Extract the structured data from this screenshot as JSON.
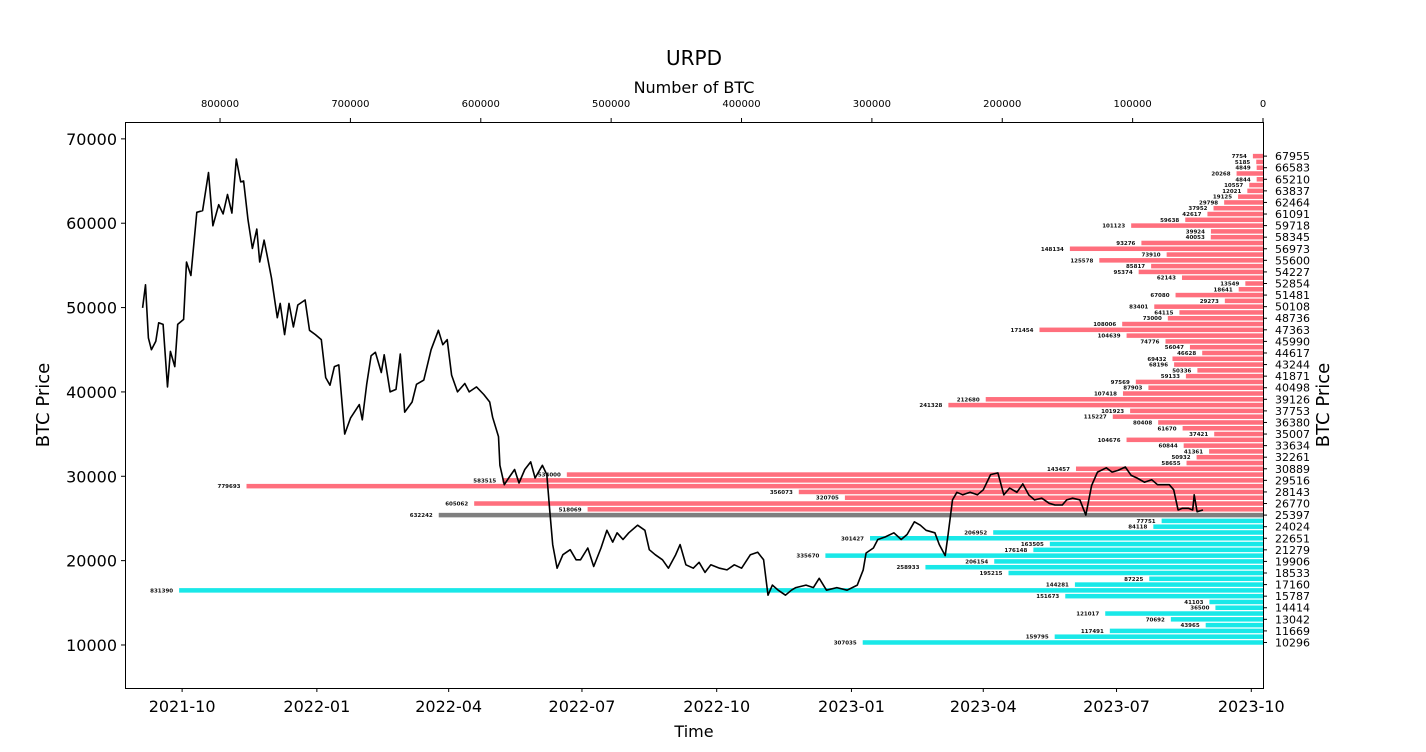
{
  "chart_data": {
    "type": "bar+line",
    "title": "URPD",
    "top_xlabel": "Number of BTC",
    "xlabel": "Time",
    "ylabel_left": "BTC Price",
    "ylabel_right": "BTC Price",
    "ylim": [
      4900,
      72000
    ],
    "top_xlim": [
      872900,
      0
    ],
    "time_origin": "2021-10-01",
    "time_xlim_days": [
      -39,
      738
    ],
    "left_yticks": [
      10000,
      20000,
      30000,
      40000,
      50000,
      60000,
      70000
    ],
    "left_ytick_labels": [
      "10000",
      "20000",
      "30000",
      "40000",
      "50000",
      "60000",
      "70000"
    ],
    "top_xticks": [
      800000,
      700000,
      600000,
      500000,
      400000,
      300000,
      200000,
      100000,
      0
    ],
    "top_xtick_labels": [
      "800000",
      "700000",
      "600000",
      "500000",
      "400000",
      "300000",
      "200000",
      "100000",
      "0"
    ],
    "time_ticks_days": [
      0,
      92,
      182,
      273,
      365,
      457,
      547,
      638,
      730
    ],
    "time_tick_labels": [
      "2021-10",
      "2022-01",
      "2022-04",
      "2022-07",
      "2022-10",
      "2023-01",
      "2023-04",
      "2023-07",
      "2023-10"
    ],
    "right_ytick_labels": [
      "67955",
      "66583",
      "65210",
      "63837",
      "62464",
      "61091",
      "59718",
      "58345",
      "56973",
      "55600",
      "54227",
      "52854",
      "51481",
      "50108",
      "48736",
      "47363",
      "45990",
      "44617",
      "43244",
      "41871",
      "40498",
      "39126",
      "37753",
      "36380",
      "35007",
      "33634",
      "32261",
      "30889",
      "29516",
      "28143",
      "26770",
      "25397",
      "24024",
      "22651",
      "21279",
      "19906",
      "18533",
      "17160",
      "15787",
      "14414",
      "13042",
      "11669",
      "10296"
    ],
    "bar_price_top": 67955,
    "bar_price_bottom": 10296,
    "current_price_bar_index": 62,
    "colors": {
      "above": "#ff6f7d",
      "below": "#19e8e8",
      "current": "#7f7f7f",
      "line": "#000000"
    },
    "bars": [
      7754,
      5185,
      4849,
      20268,
      4844,
      10557,
      12021,
      19125,
      29798,
      37952,
      42617,
      59638,
      101123,
      39924,
      40053,
      93276,
      148134,
      73910,
      125578,
      85817,
      95374,
      62143,
      13549,
      18641,
      67080,
      29273,
      83401,
      64115,
      73000,
      108006,
      171454,
      104639,
      74776,
      56047,
      46628,
      69432,
      68196,
      50336,
      59133,
      97569,
      87903,
      107418,
      212680,
      241328,
      101923,
      115227,
      80408,
      61670,
      37421,
      104676,
      60844,
      41361,
      50932,
      58655,
      143457,
      534000,
      583515,
      779693,
      356073,
      320705,
      605062,
      518069,
      632242,
      77751,
      84118,
      206952,
      301427,
      163505,
      176148,
      335670,
      206154,
      258933,
      195215,
      87225,
      144281,
      831390,
      151673,
      41103,
      36500,
      121017,
      70692,
      43965,
      117491,
      159795,
      307035
    ],
    "price_series": [
      [
        -27,
        49960
      ],
      [
        -25,
        52700
      ],
      [
        -23,
        46400
      ],
      [
        -21,
        45000
      ],
      [
        -18,
        46000
      ],
      [
        -16,
        48200
      ],
      [
        -13,
        48000
      ],
      [
        -10,
        40600
      ],
      [
        -8,
        44800
      ],
      [
        -5,
        43000
      ],
      [
        -3,
        48000
      ],
      [
        1,
        48600
      ],
      [
        3,
        55400
      ],
      [
        6,
        53800
      ],
      [
        10,
        61300
      ],
      [
        14,
        61500
      ],
      [
        18,
        66000
      ],
      [
        21,
        59700
      ],
      [
        25,
        62200
      ],
      [
        28,
        61100
      ],
      [
        31,
        63400
      ],
      [
        34,
        61200
      ],
      [
        37,
        67600
      ],
      [
        40,
        64900
      ],
      [
        42,
        65000
      ],
      [
        45,
        60400
      ],
      [
        48,
        57000
      ],
      [
        51,
        59300
      ],
      [
        53,
        55400
      ],
      [
        56,
        58000
      ],
      [
        58,
        56200
      ],
      [
        61,
        53500
      ],
      [
        65,
        48800
      ],
      [
        67,
        50500
      ],
      [
        70,
        46800
      ],
      [
        73,
        50500
      ],
      [
        76,
        47700
      ],
      [
        79,
        50300
      ],
      [
        84,
        50900
      ],
      [
        87,
        47300
      ],
      [
        91,
        46800
      ],
      [
        95,
        46200
      ],
      [
        98,
        41700
      ],
      [
        101,
        40800
      ],
      [
        104,
        43000
      ],
      [
        107,
        43200
      ],
      [
        111,
        35000
      ],
      [
        115,
        36900
      ],
      [
        121,
        38500
      ],
      [
        123,
        36700
      ],
      [
        126,
        40900
      ],
      [
        129,
        44300
      ],
      [
        132,
        44700
      ],
      [
        136,
        42300
      ],
      [
        138,
        44400
      ],
      [
        142,
        40000
      ],
      [
        146,
        40300
      ],
      [
        149,
        44500
      ],
      [
        152,
        37600
      ],
      [
        157,
        38800
      ],
      [
        160,
        40900
      ],
      [
        165,
        41400
      ],
      [
        170,
        45000
      ],
      [
        175,
        47300
      ],
      [
        178,
        45600
      ],
      [
        181,
        46200
      ],
      [
        184,
        42000
      ],
      [
        188,
        40000
      ],
      [
        193,
        41000
      ],
      [
        196,
        40000
      ],
      [
        201,
        40600
      ],
      [
        206,
        39700
      ],
      [
        210,
        38800
      ],
      [
        212,
        37000
      ],
      [
        216,
        34700
      ],
      [
        217,
        31300
      ],
      [
        220,
        29000
      ],
      [
        223,
        29800
      ],
      [
        227,
        30800
      ],
      [
        230,
        29200
      ],
      [
        234,
        30800
      ],
      [
        238,
        31700
      ],
      [
        241,
        29800
      ],
      [
        246,
        31300
      ],
      [
        249,
        30200
      ],
      [
        251,
        26000
      ],
      [
        253,
        21900
      ],
      [
        256,
        19100
      ],
      [
        260,
        20700
      ],
      [
        265,
        21300
      ],
      [
        269,
        20100
      ],
      [
        272,
        20100
      ],
      [
        277,
        21500
      ],
      [
        281,
        19300
      ],
      [
        286,
        21500
      ],
      [
        290,
        23600
      ],
      [
        294,
        22200
      ],
      [
        297,
        23300
      ],
      [
        301,
        22500
      ],
      [
        305,
        23300
      ],
      [
        311,
        24200
      ],
      [
        316,
        23600
      ],
      [
        319,
        21300
      ],
      [
        323,
        20700
      ],
      [
        328,
        20100
      ],
      [
        332,
        19100
      ],
      [
        337,
        20700
      ],
      [
        340,
        21900
      ],
      [
        344,
        19500
      ],
      [
        349,
        19100
      ],
      [
        353,
        19800
      ],
      [
        357,
        18600
      ],
      [
        361,
        19500
      ],
      [
        367,
        19100
      ],
      [
        372,
        18900
      ],
      [
        377,
        19500
      ],
      [
        382,
        19100
      ],
      [
        388,
        20700
      ],
      [
        393,
        21000
      ],
      [
        397,
        20100
      ],
      [
        400,
        15900
      ],
      [
        403,
        17100
      ],
      [
        407,
        16500
      ],
      [
        412,
        15900
      ],
      [
        416,
        16500
      ],
      [
        419,
        16800
      ],
      [
        426,
        17100
      ],
      [
        431,
        16800
      ],
      [
        435,
        17900
      ],
      [
        440,
        16500
      ],
      [
        447,
        16800
      ],
      [
        454,
        16500
      ],
      [
        461,
        17100
      ],
      [
        465,
        18900
      ],
      [
        467,
        20900
      ],
      [
        472,
        21500
      ],
      [
        475,
        22500
      ],
      [
        480,
        22800
      ],
      [
        486,
        23300
      ],
      [
        491,
        22500
      ],
      [
        495,
        23100
      ],
      [
        500,
        24600
      ],
      [
        504,
        24200
      ],
      [
        508,
        23600
      ],
      [
        514,
        23300
      ],
      [
        517,
        21900
      ],
      [
        521,
        20600
      ],
      [
        523,
        23100
      ],
      [
        526,
        27200
      ],
      [
        529,
        28100
      ],
      [
        533,
        27800
      ],
      [
        538,
        28100
      ],
      [
        543,
        27800
      ],
      [
        547,
        28400
      ],
      [
        552,
        30200
      ],
      [
        557,
        30400
      ],
      [
        561,
        27800
      ],
      [
        565,
        28600
      ],
      [
        570,
        28100
      ],
      [
        574,
        29100
      ],
      [
        578,
        27800
      ],
      [
        582,
        27200
      ],
      [
        587,
        27400
      ],
      [
        592,
        26800
      ],
      [
        596,
        26600
      ],
      [
        601,
        26600
      ],
      [
        604,
        27200
      ],
      [
        608,
        27400
      ],
      [
        613,
        27200
      ],
      [
        617,
        25400
      ],
      [
        621,
        28900
      ],
      [
        625,
        30500
      ],
      [
        631,
        31000
      ],
      [
        635,
        30500
      ],
      [
        639,
        30700
      ],
      [
        644,
        31100
      ],
      [
        648,
        30100
      ],
      [
        652,
        29800
      ],
      [
        657,
        29300
      ],
      [
        662,
        29600
      ],
      [
        666,
        29000
      ],
      [
        671,
        29000
      ],
      [
        674,
        29000
      ],
      [
        677,
        28400
      ],
      [
        680,
        26000
      ],
      [
        683,
        26200
      ],
      [
        687,
        26200
      ],
      [
        690,
        26000
      ],
      [
        691,
        27800
      ],
      [
        693,
        25800
      ],
      [
        697,
        26000
      ]
    ]
  }
}
